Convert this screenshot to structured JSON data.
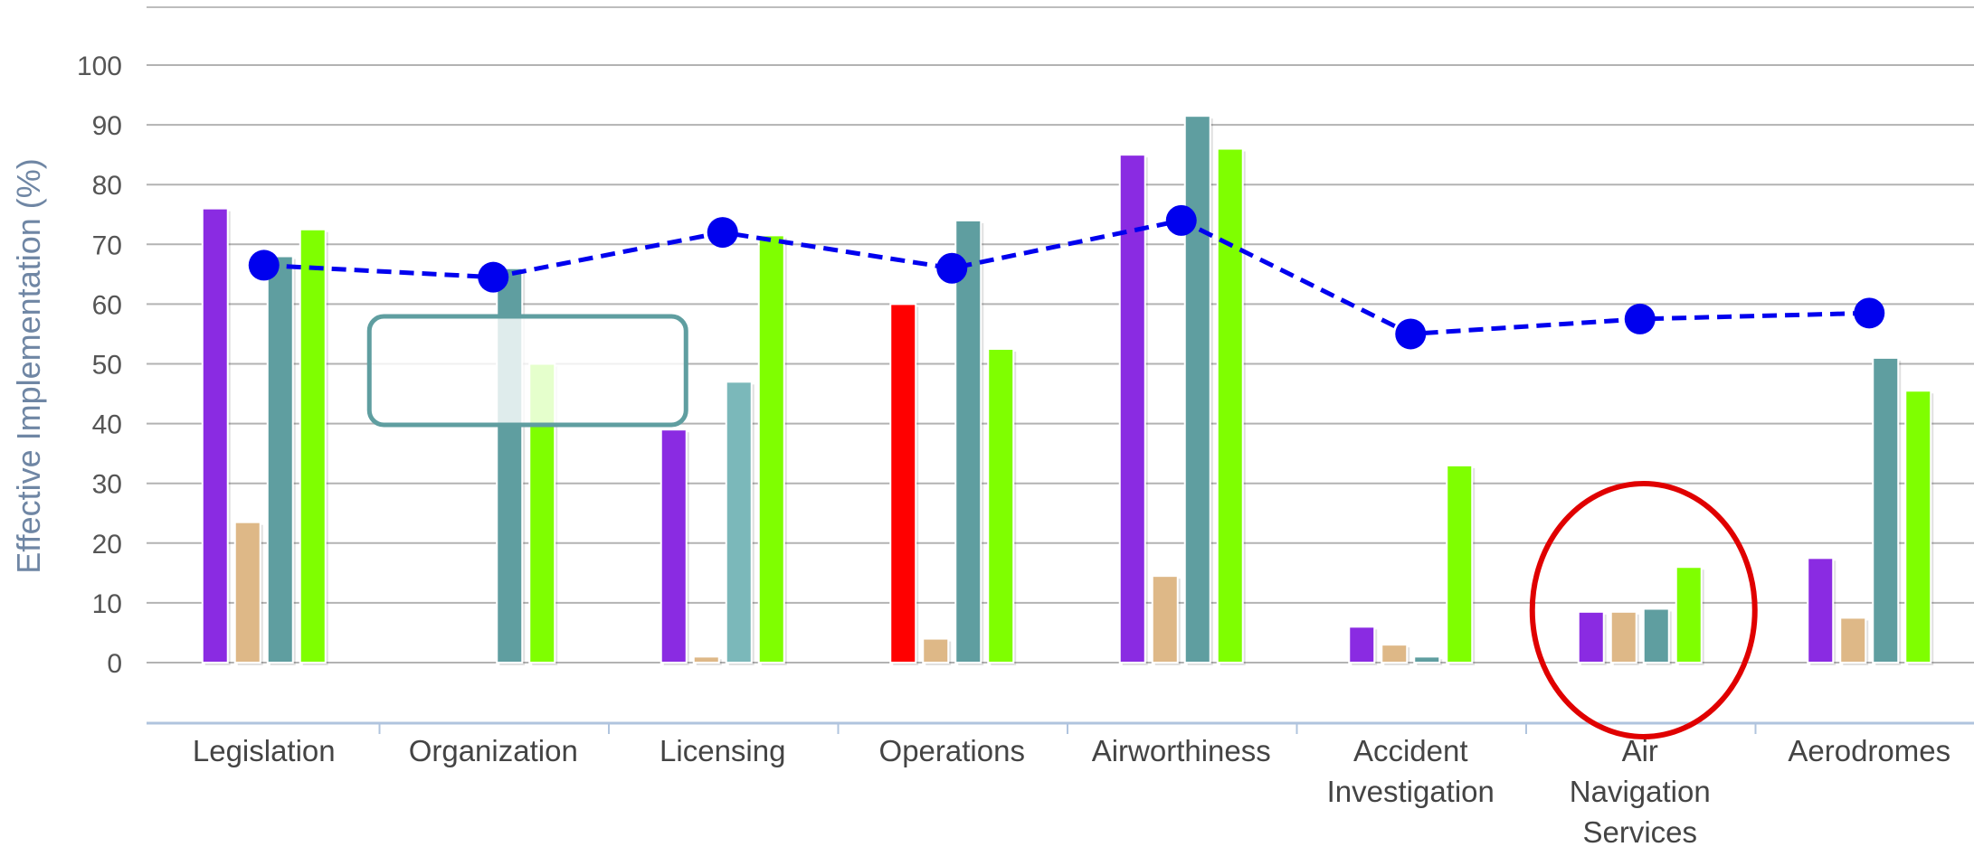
{
  "chart_data": {
    "type": "bar",
    "ylabel": "Effective Implementation (%)",
    "ylim": [
      0,
      100
    ],
    "yticks": [
      0,
      10,
      20,
      30,
      40,
      50,
      60,
      70,
      80,
      90,
      100
    ],
    "grid": true,
    "categories": [
      [
        "Legislation"
      ],
      [
        "Organization"
      ],
      [
        "Licensing"
      ],
      [
        "Operations"
      ],
      [
        "Airworthiness"
      ],
      [
        "Accident",
        "Investigation"
      ],
      [
        "Air",
        "Navigation",
        "Services"
      ],
      [
        "Aerodromes"
      ]
    ],
    "series": [
      {
        "color": "#8a2be2",
        "values": [
          76,
          null,
          39,
          60,
          85,
          6,
          8.5,
          17.5
        ]
      },
      {
        "color": "#deb887",
        "values": [
          23.5,
          null,
          1,
          4,
          14.5,
          3,
          8.5,
          7.5
        ]
      },
      {
        "color": "#5f9ea0",
        "values": [
          68,
          66,
          47,
          74,
          91.5,
          1,
          9,
          51
        ]
      },
      {
        "color": "#7fff00",
        "values": [
          72.5,
          50,
          71.5,
          52.5,
          86,
          33,
          16,
          45.5
        ]
      }
    ],
    "bar_color_overrides": [
      {
        "series": 0,
        "category": 3,
        "color": "#ff0000"
      },
      {
        "series": 2,
        "category": 2,
        "color": "#7bb8ba"
      }
    ],
    "line": {
      "type": "line",
      "style": "dashed",
      "color": "#0000ee",
      "values": [
        66.5,
        64.5,
        72,
        66,
        74,
        55,
        57.5,
        58.5
      ]
    },
    "annotations": {
      "highlight_circle_category": 6,
      "highlight_circle_color": "#e00000",
      "tooltip_box_category": 1,
      "tooltip_box_color": "#5f9ea0"
    }
  }
}
